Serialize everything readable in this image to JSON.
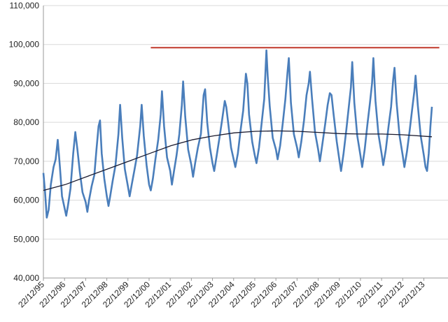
{
  "chart_data": {
    "type": "line",
    "title": "",
    "xlabel": "",
    "ylabel": "",
    "ylim": [
      40000,
      110000
    ],
    "grid": "horizontal",
    "legend": "none",
    "y_ticks": [
      "40,000",
      "50,000",
      "60,000",
      "70,000",
      "80,000",
      "90,000",
      "100,000",
      "110,000"
    ],
    "x_ticks": [
      "22/12/95",
      "22/12/96",
      "22/12/97",
      "22/12/98",
      "22/12/99",
      "22/12/00",
      "22/12/01",
      "22/12/02",
      "22/12/03",
      "22/12/04",
      "22/12/05",
      "22/12/06",
      "22/12/07",
      "22/12/08",
      "22/12/09",
      "22/12/10",
      "22/12/11",
      "22/12/12",
      "22/12/13"
    ],
    "x_range_years": [
      1995.97,
      2014.35
    ],
    "series": [
      {
        "color": "#4a7ebb",
        "style": "weekly values, strong seasonal oscillation",
        "values": [
          [
            1995.97,
            67000
          ],
          [
            1996.05,
            62000
          ],
          [
            1996.13,
            55500
          ],
          [
            1996.22,
            57500
          ],
          [
            1996.32,
            64000
          ],
          [
            1996.45,
            68500
          ],
          [
            1996.55,
            70500
          ],
          [
            1996.65,
            75500
          ],
          [
            1996.75,
            68500
          ],
          [
            1996.85,
            61000
          ],
          [
            1996.97,
            58000
          ],
          [
            1997.05,
            56000
          ],
          [
            1997.13,
            58500
          ],
          [
            1997.25,
            63000
          ],
          [
            1997.38,
            72000
          ],
          [
            1997.48,
            77500
          ],
          [
            1997.58,
            73000
          ],
          [
            1997.7,
            67000
          ],
          [
            1997.82,
            62000
          ],
          [
            1997.97,
            59500
          ],
          [
            1998.05,
            57000
          ],
          [
            1998.13,
            60000
          ],
          [
            1998.25,
            63500
          ],
          [
            1998.38,
            66500
          ],
          [
            1998.48,
            73000
          ],
          [
            1998.58,
            79000
          ],
          [
            1998.65,
            80500
          ],
          [
            1998.73,
            72000
          ],
          [
            1998.85,
            65500
          ],
          [
            1998.97,
            61000
          ],
          [
            1999.05,
            58500
          ],
          [
            1999.13,
            61000
          ],
          [
            1999.25,
            65000
          ],
          [
            1999.38,
            69000
          ],
          [
            1999.52,
            77000
          ],
          [
            1999.6,
            84500
          ],
          [
            1999.7,
            76000
          ],
          [
            1999.82,
            68000
          ],
          [
            1999.97,
            63500
          ],
          [
            2000.05,
            61000
          ],
          [
            2000.15,
            64000
          ],
          [
            2000.27,
            67500
          ],
          [
            2000.4,
            71500
          ],
          [
            2000.55,
            79000
          ],
          [
            2000.62,
            84500
          ],
          [
            2000.72,
            76500
          ],
          [
            2000.85,
            69000
          ],
          [
            2000.97,
            64000
          ],
          [
            2001.05,
            62500
          ],
          [
            2001.15,
            65500
          ],
          [
            2001.27,
            70500
          ],
          [
            2001.4,
            75500
          ],
          [
            2001.52,
            82000
          ],
          [
            2001.58,
            88000
          ],
          [
            2001.68,
            79000
          ],
          [
            2001.82,
            71000
          ],
          [
            2001.97,
            67500
          ],
          [
            2002.05,
            64000
          ],
          [
            2002.15,
            67500
          ],
          [
            2002.27,
            71500
          ],
          [
            2002.4,
            77000
          ],
          [
            2002.52,
            84500
          ],
          [
            2002.58,
            90500
          ],
          [
            2002.68,
            81500
          ],
          [
            2002.82,
            73000
          ],
          [
            2002.97,
            69000
          ],
          [
            2003.05,
            66000
          ],
          [
            2003.15,
            69500
          ],
          [
            2003.28,
            73500
          ],
          [
            2003.42,
            77000
          ],
          [
            2003.55,
            87000
          ],
          [
            2003.62,
            88500
          ],
          [
            2003.72,
            80000
          ],
          [
            2003.85,
            73500
          ],
          [
            2003.97,
            69500
          ],
          [
            2004.05,
            67500
          ],
          [
            2004.17,
            71500
          ],
          [
            2004.3,
            76000
          ],
          [
            2004.42,
            80500
          ],
          [
            2004.55,
            85500
          ],
          [
            2004.62,
            84000
          ],
          [
            2004.72,
            79500
          ],
          [
            2004.85,
            73500
          ],
          [
            2004.97,
            70500
          ],
          [
            2005.05,
            68500
          ],
          [
            2005.17,
            72000
          ],
          [
            2005.3,
            78000
          ],
          [
            2005.42,
            83000
          ],
          [
            2005.55,
            92500
          ],
          [
            2005.62,
            90000
          ],
          [
            2005.7,
            82000
          ],
          [
            2005.85,
            75000
          ],
          [
            2005.97,
            71500
          ],
          [
            2006.05,
            69500
          ],
          [
            2006.17,
            73500
          ],
          [
            2006.3,
            80000
          ],
          [
            2006.42,
            86000
          ],
          [
            2006.52,
            98500
          ],
          [
            2006.58,
            92000
          ],
          [
            2006.68,
            84000
          ],
          [
            2006.82,
            76000
          ],
          [
            2006.97,
            73000
          ],
          [
            2007.05,
            70500
          ],
          [
            2007.17,
            74000
          ],
          [
            2007.3,
            80000
          ],
          [
            2007.42,
            86000
          ],
          [
            2007.52,
            93000
          ],
          [
            2007.58,
            96500
          ],
          [
            2007.68,
            85000
          ],
          [
            2007.82,
            77000
          ],
          [
            2007.97,
            73500
          ],
          [
            2008.05,
            71000
          ],
          [
            2008.17,
            75000
          ],
          [
            2008.3,
            80500
          ],
          [
            2008.42,
            87000
          ],
          [
            2008.52,
            90000
          ],
          [
            2008.58,
            93000
          ],
          [
            2008.68,
            86000
          ],
          [
            2008.82,
            77500
          ],
          [
            2008.97,
            73000
          ],
          [
            2009.05,
            70000
          ],
          [
            2009.17,
            74500
          ],
          [
            2009.3,
            79500
          ],
          [
            2009.42,
            84500
          ],
          [
            2009.52,
            87500
          ],
          [
            2009.6,
            87000
          ],
          [
            2009.7,
            82000
          ],
          [
            2009.85,
            75000
          ],
          [
            2009.97,
            70500
          ],
          [
            2010.05,
            67500
          ],
          [
            2010.17,
            72000
          ],
          [
            2010.3,
            78000
          ],
          [
            2010.42,
            84000
          ],
          [
            2010.52,
            89000
          ],
          [
            2010.58,
            95500
          ],
          [
            2010.68,
            85000
          ],
          [
            2010.82,
            76500
          ],
          [
            2010.97,
            71500
          ],
          [
            2011.05,
            68500
          ],
          [
            2011.17,
            73000
          ],
          [
            2011.3,
            79500
          ],
          [
            2011.42,
            85000
          ],
          [
            2011.52,
            90000
          ],
          [
            2011.58,
            96500
          ],
          [
            2011.68,
            85500
          ],
          [
            2011.82,
            77000
          ],
          [
            2011.97,
            72000
          ],
          [
            2012.05,
            69000
          ],
          [
            2012.17,
            73000
          ],
          [
            2012.3,
            79000
          ],
          [
            2012.42,
            84000
          ],
          [
            2012.52,
            91000
          ],
          [
            2012.58,
            94000
          ],
          [
            2012.68,
            85000
          ],
          [
            2012.82,
            76500
          ],
          [
            2012.97,
            71500
          ],
          [
            2013.05,
            68500
          ],
          [
            2013.17,
            72500
          ],
          [
            2013.3,
            78000
          ],
          [
            2013.42,
            83500
          ],
          [
            2013.52,
            88000
          ],
          [
            2013.58,
            92000
          ],
          [
            2013.68,
            84500
          ],
          [
            2013.82,
            76500
          ],
          [
            2013.97,
            71500
          ],
          [
            2014.05,
            68500
          ],
          [
            2014.12,
            67500
          ],
          [
            2014.2,
            72000
          ],
          [
            2014.28,
            79000
          ],
          [
            2014.35,
            84000
          ]
        ]
      },
      {
        "color": "#1a1a2e",
        "style": "smoothed trend",
        "values": [
          [
            1995.97,
            62500
          ],
          [
            1997.0,
            64000
          ],
          [
            1998.0,
            66000
          ],
          [
            1999.0,
            68000
          ],
          [
            2000.0,
            70000
          ],
          [
            2001.0,
            72000
          ],
          [
            2002.0,
            74000
          ],
          [
            2003.0,
            75500
          ],
          [
            2004.0,
            76500
          ],
          [
            2005.0,
            77300
          ],
          [
            2006.0,
            77700
          ],
          [
            2007.0,
            77800
          ],
          [
            2008.0,
            77700
          ],
          [
            2009.0,
            77400
          ],
          [
            2010.0,
            77100
          ],
          [
            2011.0,
            77000
          ],
          [
            2012.0,
            77000
          ],
          [
            2013.0,
            76800
          ],
          [
            2014.35,
            76300
          ]
        ]
      },
      {
        "color": "#c0392b",
        "style": "horizontal reference",
        "values": [
          [
            2001.05,
            99200
          ],
          [
            2014.7,
            99200
          ]
        ]
      }
    ]
  }
}
